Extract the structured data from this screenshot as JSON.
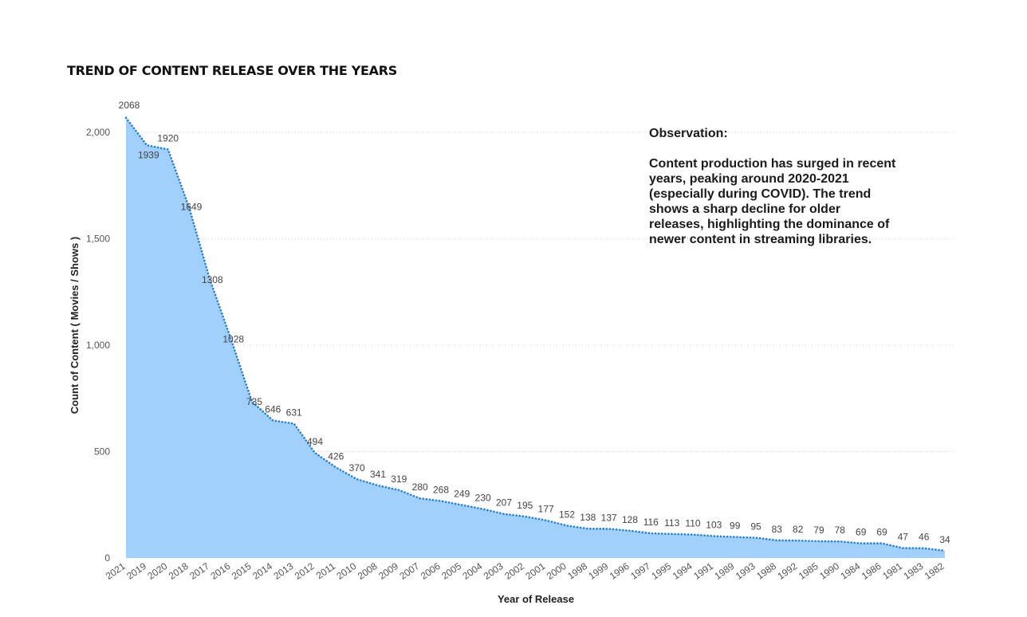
{
  "chart_data": {
    "type": "area",
    "title": "TREND OF CONTENT RELEASE OVER THE YEARS",
    "xlabel": "Year of Release",
    "ylabel": "Count of Content ( Movies / Shows )",
    "ylim": [
      0,
      2000
    ],
    "yticks": [
      0,
      500,
      1000,
      1500,
      2000
    ],
    "ytick_labels": [
      "0",
      "500",
      "1,000",
      "1,500",
      "2,000"
    ],
    "grid": "horizontal-dotted",
    "categories": [
      "2021",
      "2019",
      "2020",
      "2018",
      "2017",
      "2016",
      "2015",
      "2014",
      "2013",
      "2012",
      "2011",
      "2010",
      "2008",
      "2009",
      "2007",
      "2006",
      "2005",
      "2004",
      "2003",
      "2002",
      "2001",
      "2000",
      "1998",
      "1999",
      "1996",
      "1997",
      "1995",
      "1994",
      "1991",
      "1989",
      "1993",
      "1988",
      "1992",
      "1985",
      "1990",
      "1984",
      "1986",
      "1981",
      "1983",
      "1982"
    ],
    "values": [
      2068,
      1939,
      1920,
      1649,
      1308,
      1028,
      735,
      646,
      631,
      494,
      426,
      370,
      341,
      319,
      280,
      268,
      249,
      230,
      207,
      195,
      177,
      152,
      138,
      137,
      128,
      116,
      113,
      110,
      103,
      99,
      95,
      83,
      82,
      79,
      78,
      69,
      69,
      47,
      46,
      34
    ],
    "colors": {
      "area": "#a0d0fb",
      "line": "#1f7fe0",
      "text": "#444444",
      "grid": "#c8c8c8"
    }
  },
  "observation": {
    "heading": "Observation:",
    "body": "Content production has surged in recent years, peaking around 2020-2021 (especially during COVID). The trend shows a sharp decline for older releases, highlighting the dominance of newer content in streaming libraries."
  }
}
